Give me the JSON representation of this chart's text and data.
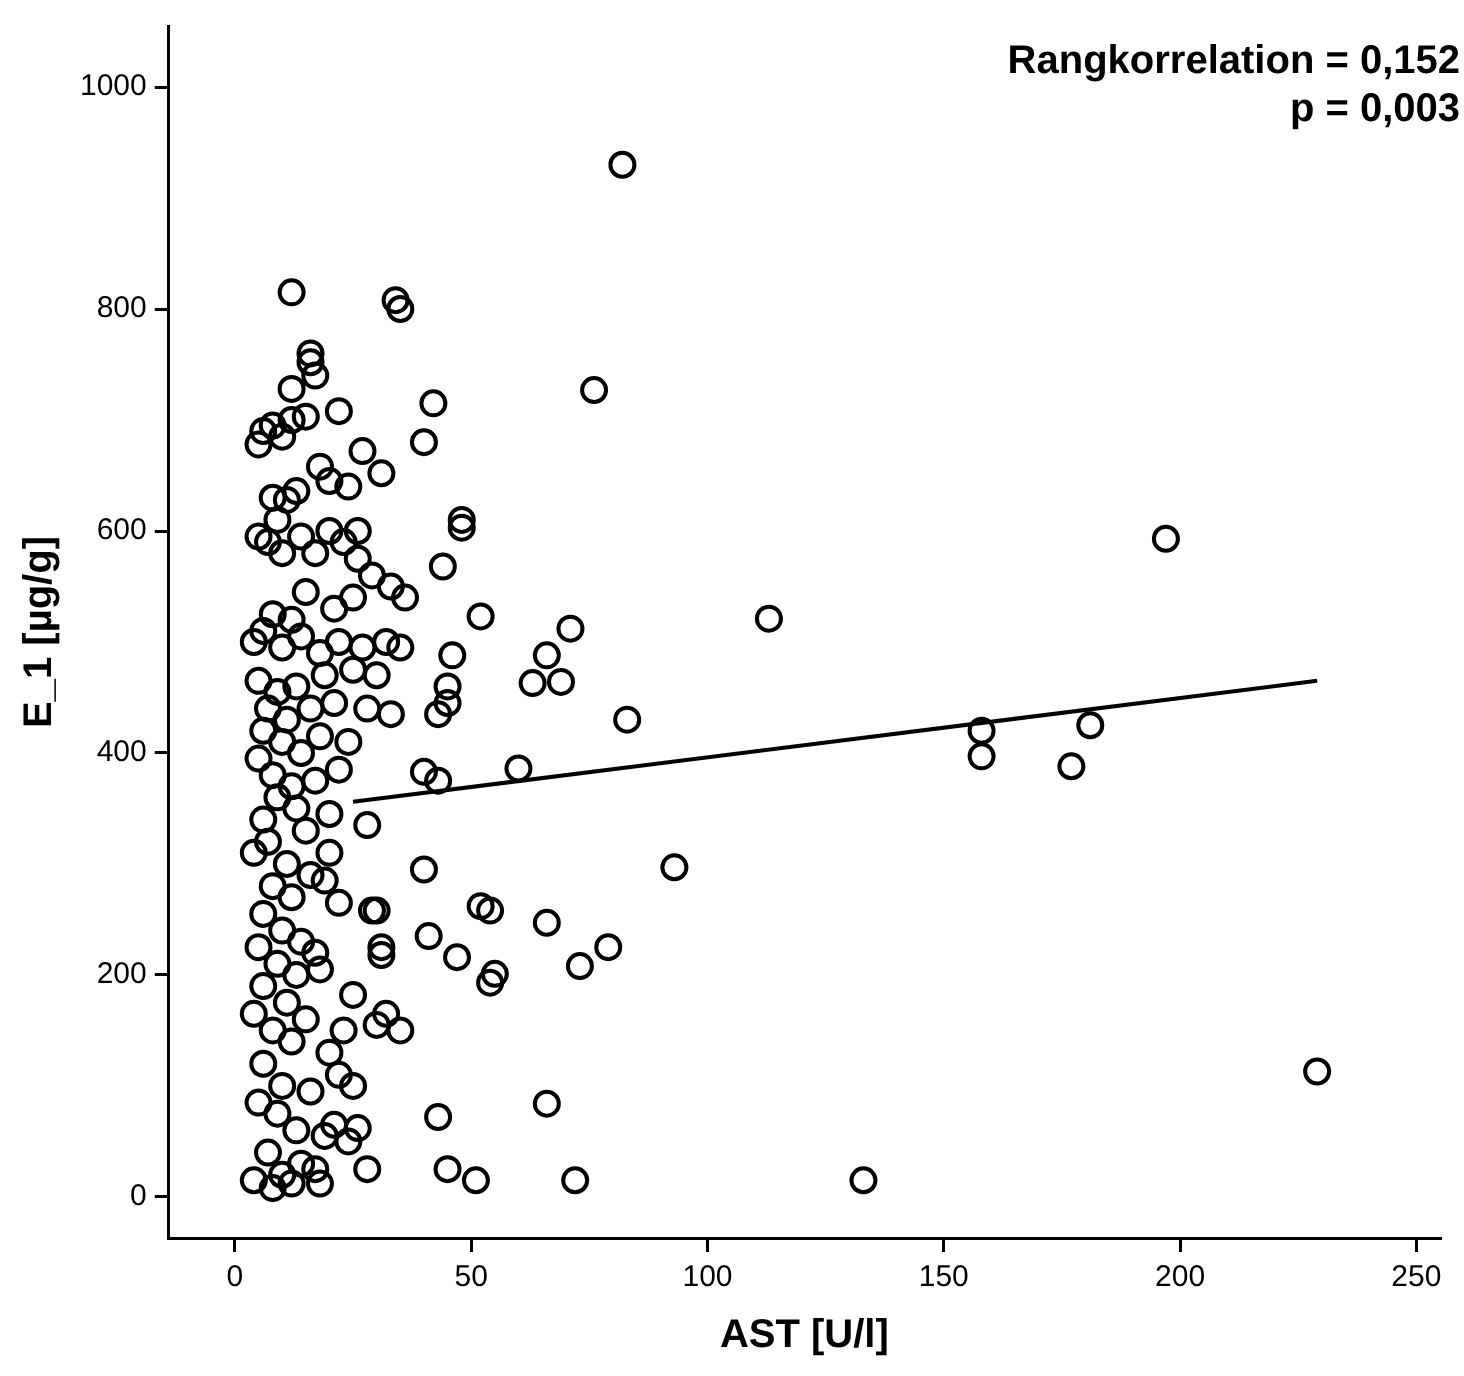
{
  "chart_data": {
    "type": "scatter",
    "xlabel": "AST [U/l]",
    "ylabel": "E_1 [µg/g]",
    "annotations": [
      "Rangkorrelation = 0,152",
      "p = 0,003"
    ],
    "xlim": [
      -14,
      255
    ],
    "xticks": [
      0,
      50,
      100,
      150,
      200,
      250
    ],
    "ylim": [
      -37,
      1055
    ],
    "yticks": [
      0,
      200,
      400,
      600,
      800,
      1000
    ],
    "grid": false,
    "legend": false,
    "marker": "circle",
    "series": [
      {
        "color": "#000000",
        "x": [
          82,
          76,
          197,
          113,
          158,
          158,
          177,
          181,
          229,
          133,
          93,
          83,
          79,
          73,
          72,
          66,
          66,
          71,
          69,
          66,
          63,
          60,
          54,
          52,
          55,
          54,
          52,
          51,
          45,
          43,
          47,
          41,
          48,
          48,
          44,
          45,
          45,
          46,
          43,
          42,
          40,
          34,
          35,
          43,
          40,
          40,
          32,
          30,
          35,
          31,
          31,
          29,
          30,
          28,
          12,
          16,
          16,
          17,
          12,
          8,
          6,
          5,
          10,
          12,
          15,
          22,
          27,
          31,
          24,
          20,
          18,
          13,
          11,
          8,
          9,
          7,
          5,
          10,
          14,
          17,
          20,
          23,
          26,
          29,
          33,
          36,
          25,
          21,
          15,
          12,
          8,
          6,
          4,
          10,
          14,
          18,
          22,
          27,
          32,
          35,
          30,
          25,
          19,
          13,
          9,
          5,
          7,
          11,
          16,
          21,
          28,
          33,
          6,
          10,
          14,
          18,
          24,
          5,
          8,
          12,
          17,
          22,
          9,
          13,
          6,
          15,
          20,
          7,
          11,
          4,
          16,
          8,
          12,
          19,
          22,
          6,
          10,
          14,
          17,
          5,
          9,
          13,
          18,
          6,
          11,
          4,
          15,
          8,
          12,
          20,
          22,
          6,
          10,
          16,
          5,
          9,
          13,
          19,
          21,
          24,
          26,
          4,
          8,
          10,
          12,
          14,
          17,
          7,
          18,
          25,
          23,
          25,
          28,
          20,
          26
        ],
        "values": [
          930,
          727,
          593,
          521,
          420,
          397,
          388,
          425,
          113,
          15,
          297,
          430,
          225,
          208,
          15,
          247,
          84,
          512,
          464,
          488,
          463,
          386,
          258,
          262,
          201,
          193,
          523,
          15,
          25,
          72,
          216,
          235,
          610,
          603,
          568,
          460,
          445,
          488,
          435,
          715,
          680,
          808,
          800,
          375,
          383,
          295,
          165,
          155,
          150,
          225,
          218,
          258,
          258,
          25,
          815,
          760,
          752,
          740,
          728,
          695,
          690,
          678,
          685,
          700,
          703,
          708,
          672,
          652,
          640,
          645,
          658,
          636,
          628,
          630,
          610,
          590,
          595,
          580,
          595,
          580,
          600,
          590,
          575,
          560,
          550,
          540,
          540,
          530,
          545,
          520,
          525,
          510,
          500,
          495,
          505,
          490,
          500,
          495,
          500,
          495,
          470,
          475,
          470,
          460,
          455,
          465,
          440,
          430,
          440,
          445,
          440,
          435,
          420,
          410,
          400,
          415,
          410,
          395,
          380,
          370,
          375,
          385,
          360,
          350,
          340,
          330,
          345,
          320,
          300,
          310,
          290,
          280,
          270,
          285,
          265,
          255,
          240,
          230,
          220,
          225,
          210,
          200,
          205,
          190,
          175,
          165,
          160,
          150,
          140,
          130,
          110,
          120,
          100,
          95,
          85,
          75,
          60,
          55,
          65,
          50,
          62,
          15,
          8,
          20,
          12,
          30,
          25,
          40,
          12,
          100,
          150,
          182,
          335,
          310,
          600
        ]
      },
      {
        "color": "#000000",
        "type": "line",
        "marker": "none",
        "x": [
          25,
          229
        ],
        "values": [
          356,
          465
        ]
      }
    ]
  }
}
